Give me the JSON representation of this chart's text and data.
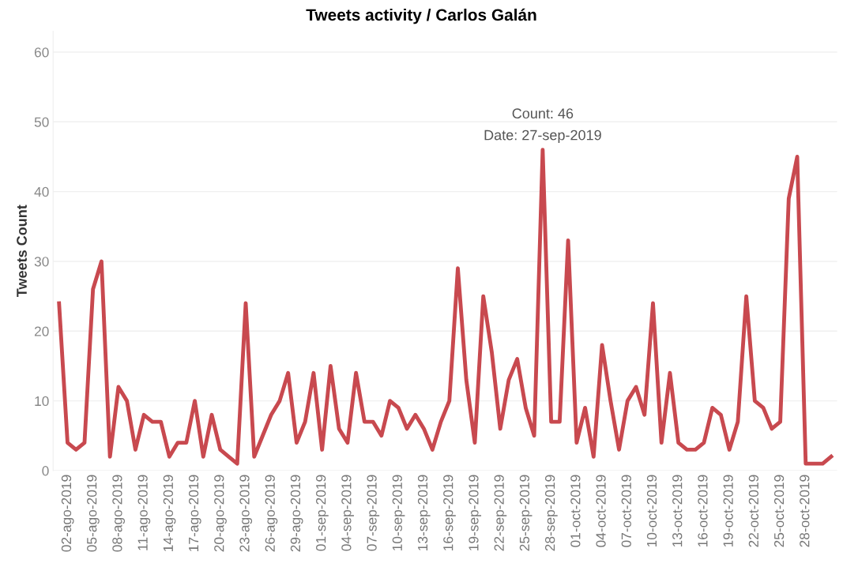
{
  "chart_data": {
    "type": "line",
    "title": "Tweets activity / Carlos Galán",
    "ylabel": "Tweets Count",
    "categories": [
      null,
      "02-ago-2019",
      null,
      null,
      "05-ago-2019",
      null,
      null,
      "08-ago-2019",
      null,
      null,
      "11-ago-2019",
      null,
      null,
      "14-ago-2019",
      null,
      null,
      "17-ago-2019",
      null,
      null,
      "20-ago-2019",
      null,
      null,
      "23-ago-2019",
      null,
      null,
      "26-ago-2019",
      null,
      null,
      "29-ago-2019",
      null,
      null,
      "01-sep-2019",
      null,
      null,
      "04-sep-2019",
      null,
      null,
      "07-sep-2019",
      null,
      null,
      "10-sep-2019",
      null,
      null,
      "13-sep-2019",
      null,
      null,
      "16-sep-2019",
      null,
      null,
      "19-sep-2019",
      null,
      null,
      "22-sep-2019",
      null,
      null,
      "25-sep-2019",
      null,
      null,
      "28-sep-2019",
      null,
      null,
      "01-oct-2019",
      null,
      null,
      "04-oct-2019",
      null,
      null,
      "07-oct-2019",
      null,
      null,
      "10-oct-2019",
      null,
      null,
      "13-oct-2019",
      null,
      null,
      "16-oct-2019",
      null,
      null,
      "19-oct-2019",
      null,
      null,
      "22-oct-2019",
      null,
      null,
      "25-oct-2019",
      null,
      null,
      "28-oct-2019",
      null,
      null,
      null
    ],
    "series": [
      {
        "color": "#c8494f",
        "values": [
          24,
          4,
          3,
          4,
          26,
          30,
          2,
          12,
          10,
          3,
          8,
          7,
          7,
          2,
          4,
          4,
          10,
          2,
          8,
          3,
          2,
          1,
          24,
          2,
          5,
          8,
          10,
          14,
          4,
          7,
          14,
          3,
          15,
          6,
          4,
          14,
          7,
          7,
          5,
          10,
          9,
          6,
          8,
          6,
          3,
          7,
          10,
          29,
          13,
          4,
          25,
          17,
          6,
          13,
          16,
          9,
          5,
          46,
          7,
          7,
          33,
          4,
          9,
          2,
          18,
          10,
          3,
          10,
          12,
          8,
          24,
          4,
          14,
          4,
          3,
          3,
          4,
          9,
          8,
          3,
          7,
          25,
          10,
          9,
          6,
          7,
          39,
          45,
          1,
          1,
          1,
          2
        ]
      }
    ],
    "ylim": [
      0,
      63
    ],
    "yticks": [
      0,
      10,
      20,
      30,
      40,
      50,
      60
    ],
    "grid": "y",
    "marker": "none",
    "line_style": "solid",
    "annotations": [
      "Count: 46",
      "Date: 27-sep-2019"
    ]
  }
}
